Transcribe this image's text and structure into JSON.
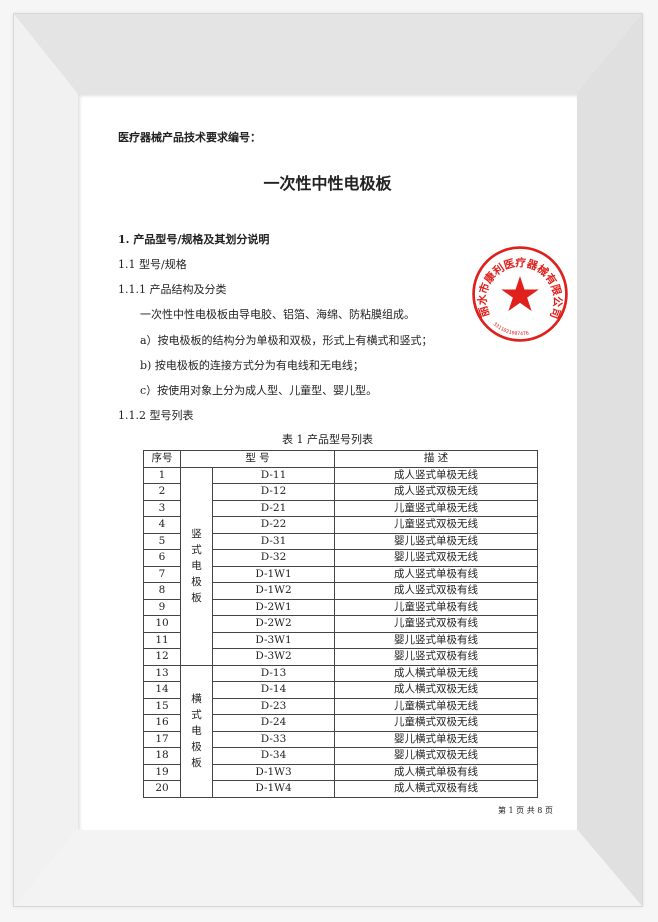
{
  "doc_number_label": "医疗器械产品技术要求编号：",
  "title": "一次性中性电极板",
  "section1": "1. 产品型号/规格及其划分说明",
  "s1_1": "1.1  型号/规格",
  "s1_1_1": "1.1.1  产品结构及分类",
  "body": "一次性中性电极板由导电胶、铝箔、海绵、防粘膜组成。",
  "item_a": "a）按电极板的结构分为单极和双极，形式上有横式和竖式；",
  "item_b": "b)  按电极板的连接方式分为有电线和无电线；",
  "item_c": "c）按使用对象上分为成人型、儿童型、婴儿型。",
  "s1_1_2": "1.1.2  型号列表",
  "table": {
    "caption": "表 1  产品型号列表",
    "headers": [
      "序号",
      "型  号",
      "描  述"
    ],
    "groups": [
      "竖式电极板",
      "横式电极板"
    ],
    "rows": [
      [
        "1",
        "D-11",
        "成人竖式单极无线"
      ],
      [
        "2",
        "D-12",
        "成人竖式双极无线"
      ],
      [
        "3",
        "D-21",
        "儿童竖式单极无线"
      ],
      [
        "4",
        "D-22",
        "儿童竖式双极无线"
      ],
      [
        "5",
        "D-31",
        "婴儿竖式单极无线"
      ],
      [
        "6",
        "D-32",
        "婴儿竖式双极无线"
      ],
      [
        "7",
        "D-1W1",
        "成人竖式单极有线"
      ],
      [
        "8",
        "D-1W2",
        "成人竖式双极有线"
      ],
      [
        "9",
        "D-2W1",
        "儿童竖式单极有线"
      ],
      [
        "10",
        "D-2W2",
        "儿童竖式双极有线"
      ],
      [
        "11",
        "D-3W1",
        "婴儿竖式单极有线"
      ],
      [
        "12",
        "D-3W2",
        "婴儿竖式双极有线"
      ],
      [
        "13",
        "D-13",
        "成人横式单极无线"
      ],
      [
        "14",
        "D-14",
        "成人横式双极无线"
      ],
      [
        "15",
        "D-23",
        "儿童横式单极无线"
      ],
      [
        "16",
        "D-24",
        "儿童横式双极无线"
      ],
      [
        "17",
        "D-33",
        "婴儿横式单极无线"
      ],
      [
        "18",
        "D-34",
        "婴儿横式双极无线"
      ],
      [
        "19",
        "D-1W3",
        "成人横式单极有线"
      ],
      [
        "20",
        "D-1W4",
        "成人横式双极有线"
      ]
    ]
  },
  "footer": "第 1 页 共 8 页",
  "stamp": {
    "text": "丽水市康利医疗器械有限公司",
    "number": "3311021007476",
    "color": "#e0201c"
  }
}
